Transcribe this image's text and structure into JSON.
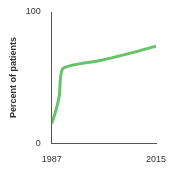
{
  "chart_data": {
    "type": "line",
    "y_label": "Percent of patients",
    "x": [
      1987,
      1988,
      1989,
      1990,
      2000,
      2010,
      2015
    ],
    "values": [
      15,
      24,
      36,
      57,
      63,
      70,
      74
    ],
    "color": "#66c36a",
    "xlim": [
      1987,
      2015
    ],
    "xticks": [
      1987,
      2015
    ],
    "ylim": [
      0,
      100
    ],
    "yticks": [
      0,
      100
    ],
    "grid": false
  }
}
